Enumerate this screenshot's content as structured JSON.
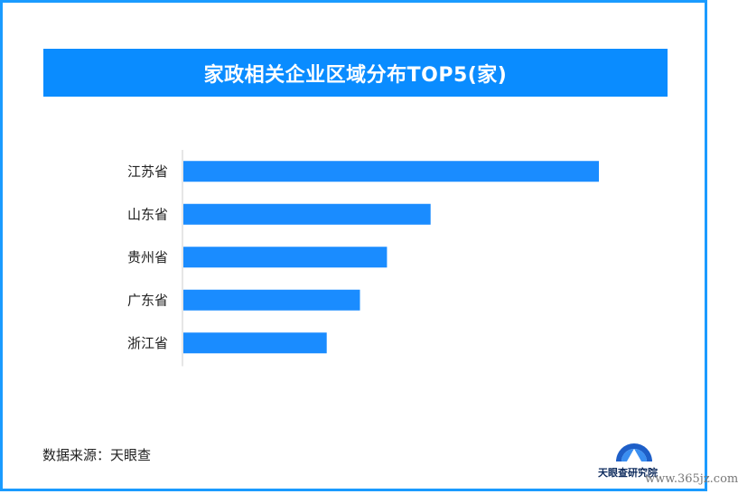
{
  "title": "家政相关企业区域分布TOP5(家)",
  "source_text": "数据来源：天眼查",
  "logo": {
    "name": "天眼查研究院",
    "watermark": "www.365jz.com"
  },
  "colors": {
    "bar": "#1a8cff",
    "banner": "#0a8cff",
    "border": "#1a9bff",
    "axis": "#cccccc"
  },
  "chart_data": {
    "type": "bar",
    "orientation": "horizontal",
    "title": "家政相关企业区域分布TOP5(家)",
    "categories": [
      "江苏省",
      "山东省",
      "贵州省",
      "广东省",
      "浙江省"
    ],
    "values": [
      100,
      59.5,
      49,
      42.5,
      34.5
    ],
    "xlim": [
      0,
      100
    ],
    "grid": false,
    "legend": "none"
  }
}
